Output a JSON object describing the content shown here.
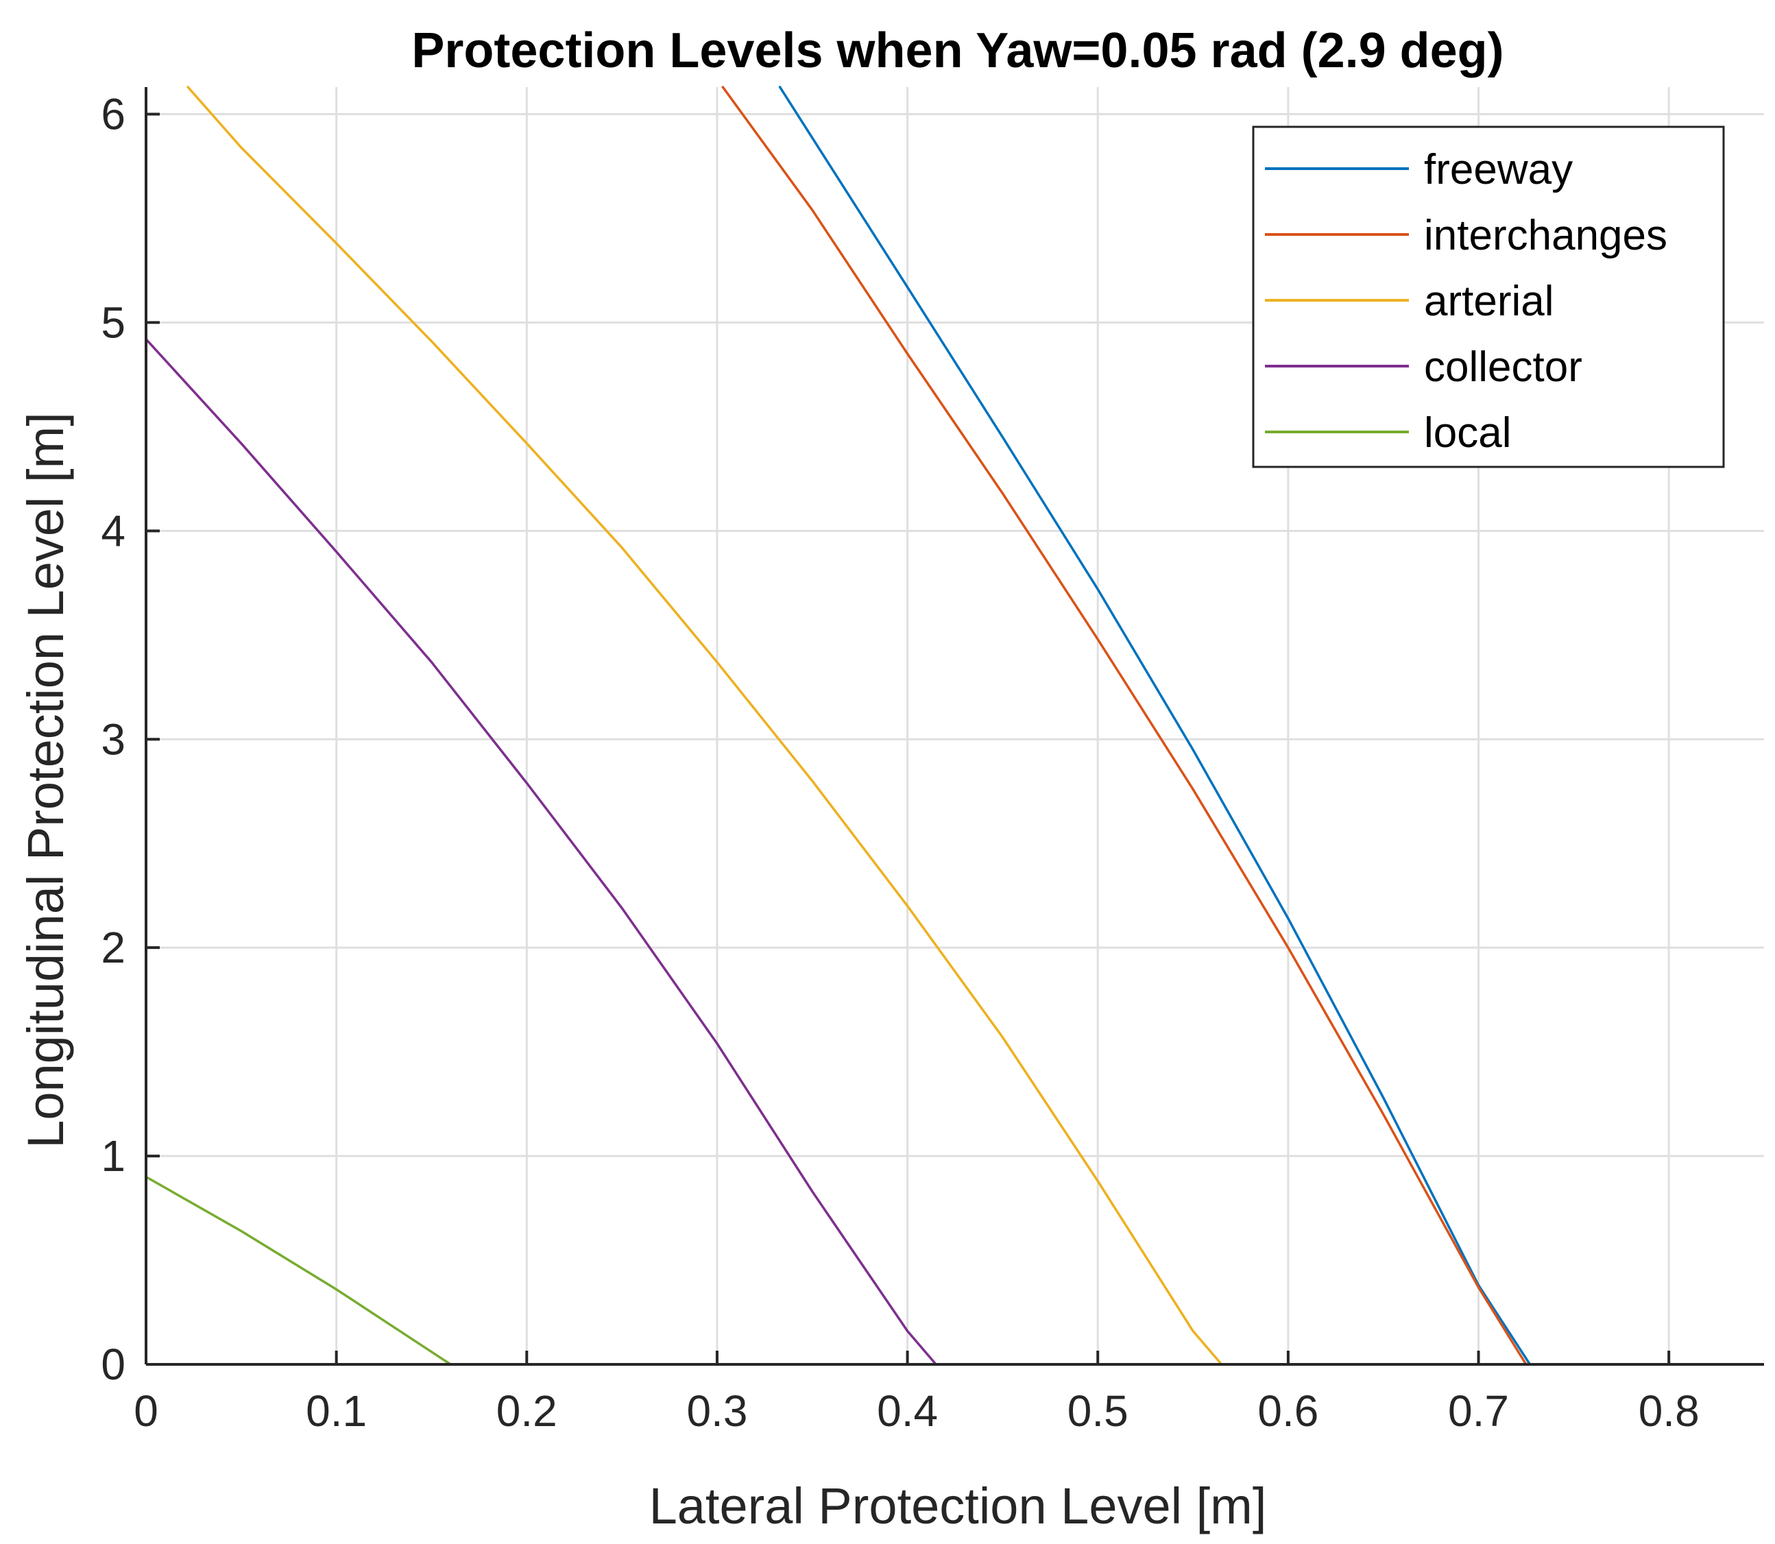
{
  "chart_data": {
    "type": "line",
    "title": "Protection Levels when Yaw=0.05 rad (2.9 deg)",
    "xlabel": "Lateral Protection Level [m]",
    "ylabel": "Longitudinal Protection Level [m]",
    "xlim": [
      0,
      0.85
    ],
    "ylim": [
      0,
      6.13
    ],
    "xticks": [
      0,
      0.1,
      0.2,
      0.3,
      0.4,
      0.5,
      0.6,
      0.7,
      0.8
    ],
    "xtick_labels": [
      "0",
      "0.1",
      "0.2",
      "0.3",
      "0.4",
      "0.5",
      "0.6",
      "0.7",
      "0.8"
    ],
    "yticks": [
      0,
      1,
      2,
      3,
      4,
      5,
      6
    ],
    "ytick_labels": [
      "0",
      "1",
      "2",
      "3",
      "4",
      "5",
      "6"
    ],
    "grid": true,
    "legend_position": "top-right",
    "series": [
      {
        "name": "freeway",
        "color": "#0072BD",
        "x": [
          0.333,
          0.4,
          0.45,
          0.5,
          0.55,
          0.6,
          0.65,
          0.7,
          0.727
        ],
        "y": [
          6.13,
          5.17,
          4.45,
          3.72,
          2.95,
          2.14,
          1.28,
          0.38,
          0.0
        ]
      },
      {
        "name": "interchanges",
        "color": "#D95319",
        "x": [
          0.303,
          0.35,
          0.4,
          0.45,
          0.5,
          0.55,
          0.6,
          0.65,
          0.7,
          0.725
        ],
        "y": [
          6.13,
          5.54,
          4.85,
          4.18,
          3.48,
          2.76,
          2.0,
          1.2,
          0.37,
          0.0
        ]
      },
      {
        "name": "arterial",
        "color": "#EDB120",
        "x": [
          0.022,
          0.05,
          0.1,
          0.15,
          0.2,
          0.25,
          0.3,
          0.35,
          0.4,
          0.45,
          0.5,
          0.55,
          0.565
        ],
        "y": [
          6.13,
          5.84,
          5.38,
          4.91,
          4.42,
          3.92,
          3.37,
          2.8,
          2.2,
          1.57,
          0.88,
          0.16,
          0.0
        ]
      },
      {
        "name": "collector",
        "color": "#7E2F8E",
        "x": [
          0.0,
          0.05,
          0.1,
          0.15,
          0.2,
          0.25,
          0.3,
          0.35,
          0.4,
          0.415
        ],
        "y": [
          4.92,
          4.42,
          3.9,
          3.37,
          2.79,
          2.19,
          1.54,
          0.83,
          0.16,
          0.0
        ]
      },
      {
        "name": "local",
        "color": "#77AC30",
        "x": [
          0.0,
          0.05,
          0.1,
          0.13,
          0.16
        ],
        "y": [
          0.9,
          0.64,
          0.36,
          0.18,
          0.0
        ]
      }
    ]
  }
}
